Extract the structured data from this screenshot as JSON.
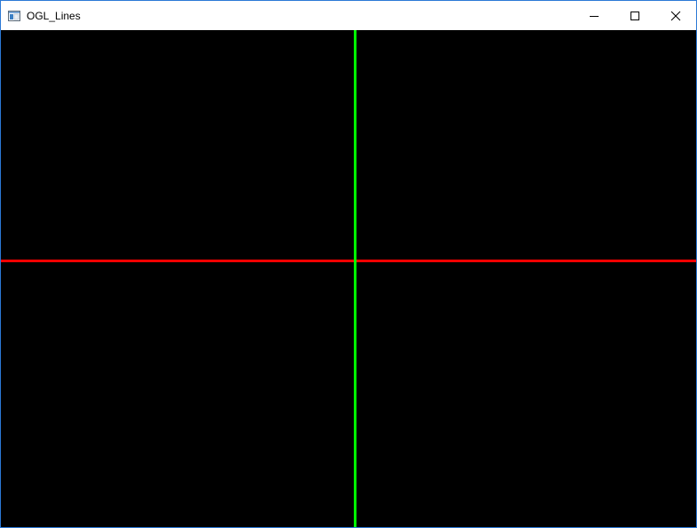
{
  "window": {
    "title": "OGL_Lines",
    "icon": "application-window-icon",
    "controls": [
      {
        "name": "minimize",
        "icon": "minimize-icon"
      },
      {
        "name": "maximize",
        "icon": "maximize-icon"
      },
      {
        "name": "close",
        "icon": "close-icon"
      }
    ]
  },
  "canvas": {
    "background_color": "#000000",
    "lines": [
      {
        "name": "horizontal-red-line",
        "orientation": "horizontal",
        "color": "#ff0000"
      },
      {
        "name": "vertical-green-line",
        "orientation": "vertical",
        "color": "#00ff00"
      }
    ]
  }
}
